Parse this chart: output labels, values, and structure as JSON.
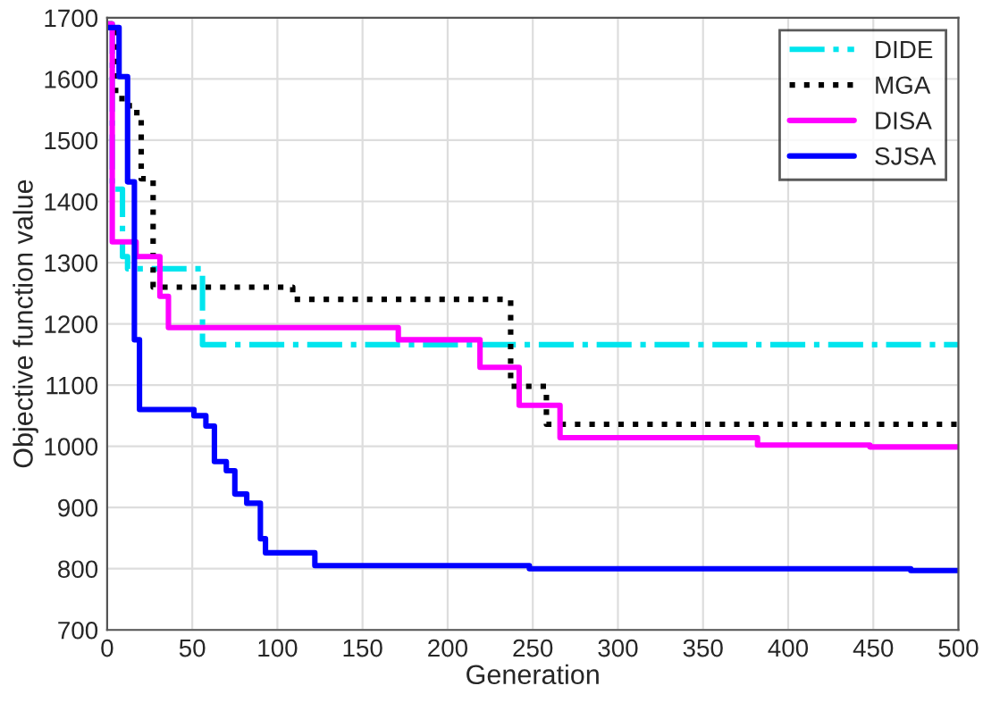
{
  "chart_data": {
    "type": "step",
    "xlabel": "Generation",
    "ylabel": "Objective function value",
    "xlim": [
      0,
      500
    ],
    "xticks": [
      0,
      50,
      100,
      150,
      200,
      250,
      300,
      350,
      400,
      450,
      500
    ],
    "ylim": [
      700,
      1700
    ],
    "yticks": [
      700,
      800,
      900,
      1000,
      1100,
      1200,
      1300,
      1400,
      1500,
      1600,
      1700
    ],
    "grid": true,
    "legend": "top right",
    "series": [
      {
        "name": "DIDE",
        "color": "#00e5ee",
        "line_style": "dashdot",
        "x": [
          0,
          3,
          9,
          12,
          56,
          500
        ],
        "values": [
          1690,
          1420,
          1310,
          1290,
          1166,
          1166
        ]
      },
      {
        "name": "MGA",
        "color": "#000000",
        "line_style": "dotted",
        "x": [
          0,
          5,
          13,
          20,
          27,
          109,
          237,
          258,
          500
        ],
        "values": [
          1690,
          1568,
          1545,
          1437,
          1260,
          1240,
          1098,
          1036,
          1036
        ]
      },
      {
        "name": "DISA",
        "color": "#ff00ff",
        "line_style": "solid",
        "x": [
          0,
          3,
          17,
          31,
          36,
          171,
          219,
          242,
          266,
          382,
          448,
          500
        ],
        "values": [
          1690,
          1334,
          1310,
          1245,
          1194,
          1174,
          1129,
          1067,
          1014,
          1002,
          999,
          999
        ]
      },
      {
        "name": "SJSA",
        "color": "#0000ff",
        "line_style": "solid",
        "x": [
          0,
          7,
          12,
          16,
          19,
          51,
          58,
          63,
          70,
          75,
          82,
          90,
          93,
          122,
          248,
          472,
          500
        ],
        "values": [
          1684,
          1604,
          1432,
          1174,
          1060,
          1050,
          1033,
          975,
          960,
          922,
          907,
          849,
          826,
          805,
          800,
          797,
          797
        ]
      }
    ]
  }
}
